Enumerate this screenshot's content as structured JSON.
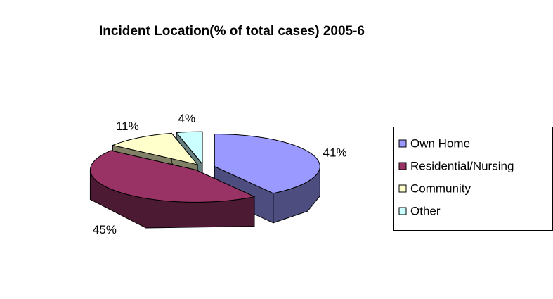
{
  "chart_data": {
    "type": "pie",
    "title": "Incident Location(% of total cases) 2005-6",
    "categories": [
      "Own Home",
      "Residential/Nursing",
      "Community",
      "Other"
    ],
    "values": [
      41,
      45,
      11,
      4
    ],
    "value_labels": [
      "41%",
      "45%",
      "11%",
      "4%"
    ],
    "colors": [
      "#9999ff",
      "#993366",
      "#ffffcc",
      "#ccffff"
    ],
    "legend": "right"
  }
}
